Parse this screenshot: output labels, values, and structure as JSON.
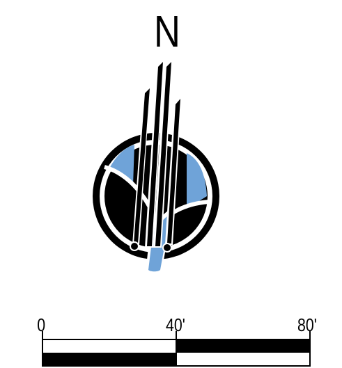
{
  "north_arrow": {
    "label": "N",
    "colors": {
      "ink": "#000000",
      "accent": "#6fa3d8",
      "paper": "#ffffff"
    }
  },
  "scale_bar": {
    "ticks": [
      {
        "label": "0",
        "value": 0
      },
      {
        "label": "40'",
        "value": 40
      },
      {
        "label": "80'",
        "value": 80
      }
    ],
    "segments": [
      {
        "from": 0,
        "to": 40,
        "top": "white",
        "bottom": "black"
      },
      {
        "from": 40,
        "to": 80,
        "top": "black",
        "bottom": "white"
      }
    ]
  }
}
